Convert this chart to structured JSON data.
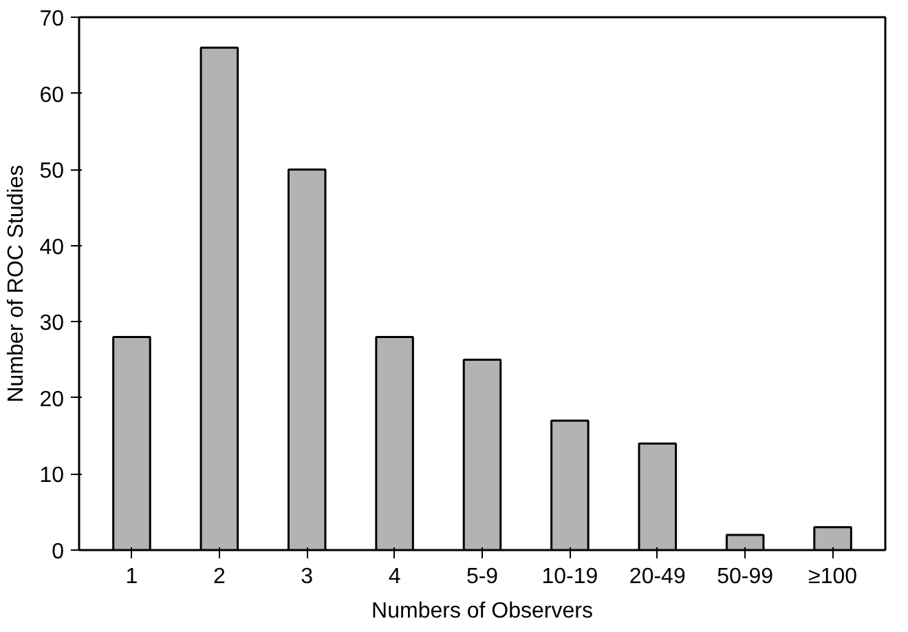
{
  "chart_data": {
    "type": "bar",
    "xlabel": "Numbers of Observers",
    "ylabel": "Number of ROC Studies",
    "categories": [
      "1",
      "2",
      "3",
      "4",
      "5-9",
      "10-19",
      "20-49",
      "50-99",
      "≥100"
    ],
    "values": [
      28,
      66,
      50,
      28,
      25,
      17,
      14,
      2,
      3
    ],
    "color": "#b3b3b3",
    "ylim": [
      0,
      70
    ],
    "yticks": [
      0,
      10,
      20,
      30,
      40,
      50,
      60,
      70
    ],
    "grid": false
  }
}
